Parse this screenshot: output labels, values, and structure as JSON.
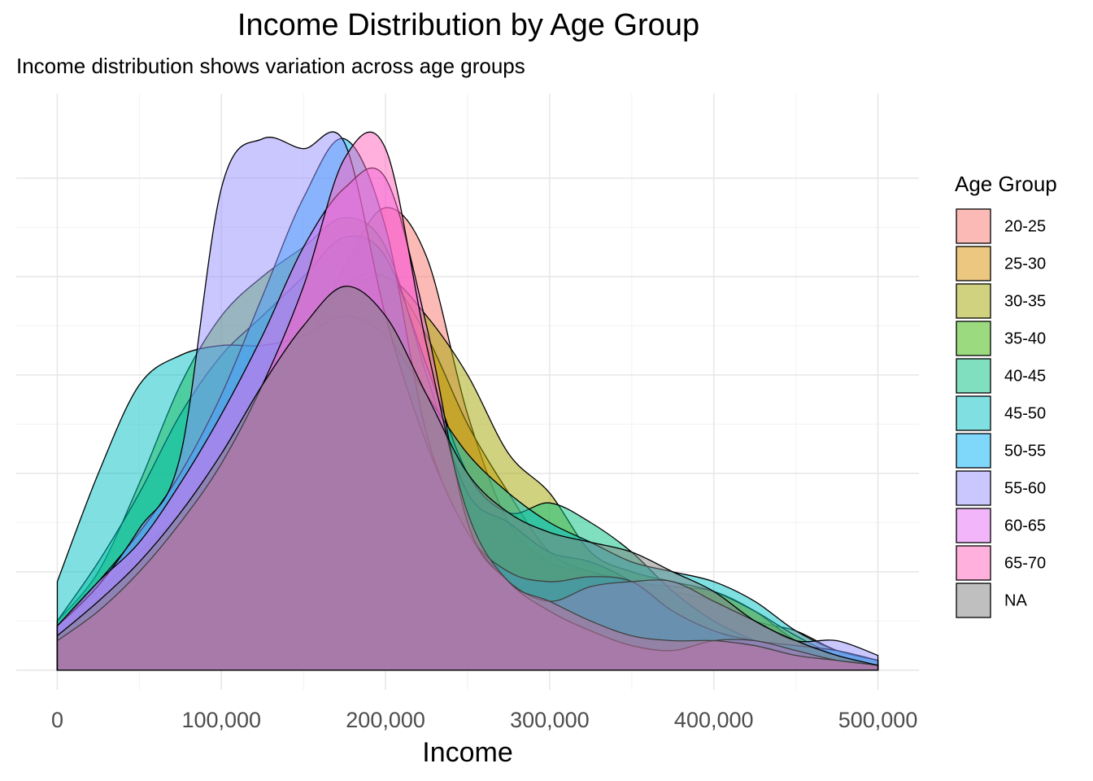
{
  "chart_data": {
    "type": "density",
    "title": "Income Distribution by Age Group",
    "subtitle": "Income distribution shows variation across age groups",
    "x_label": "Income",
    "legend_title": "Age Group",
    "legend_position": "right",
    "grid": true,
    "xlim": [
      -25000,
      525000
    ],
    "xticks": [
      0,
      {
        "value": 100000,
        "label": "100,000"
      },
      {
        "value": 200000,
        "label": "200,000"
      },
      {
        "value": 300000,
        "label": "300,000"
      },
      {
        "value": 400000,
        "label": "400,000"
      },
      {
        "value": 500000,
        "label": "500,000"
      }
    ],
    "ylim": [
      -2e-07,
      5.86e-06
    ],
    "yticks": [
      0,
      1e-06,
      2e-06,
      3e-06,
      4e-06,
      5e-06
    ],
    "x": [
      0,
      25000,
      50000,
      75000,
      100000,
      125000,
      150000,
      175000,
      200000,
      225000,
      250000,
      275000,
      300000,
      325000,
      350000,
      375000,
      400000,
      425000,
      450000,
      475000,
      500000
    ],
    "series": [
      {
        "name": "20-25",
        "color": "#F8766D",
        "values": [
          4e-07,
          6e-07,
          9e-07,
          1.3e-06,
          1.8e-06,
          2.4e-06,
          3.2e-06,
          4.1e-06,
          4.7e-06,
          4.2e-06,
          2.6e-06,
          1.5e-06,
          1.1e-06,
          1e-06,
          9e-07,
          8e-07,
          7e-07,
          5e-07,
          4e-07,
          2e-07,
          1e-07
        ]
      },
      {
        "name": "25-30",
        "color": "#D89000",
        "values": [
          3.5e-07,
          7e-07,
          1.1e-06,
          1.5e-06,
          2e-06,
          2.6e-06,
          3.3e-06,
          3.9e-06,
          4e-06,
          3.4e-06,
          2.5e-06,
          1.8e-06,
          1.2e-06,
          1e-06,
          9e-07,
          8.5e-07,
          8e-07,
          6e-07,
          3e-07,
          1.5e-07,
          5e-08
        ]
      },
      {
        "name": "30-35",
        "color": "#A3A500",
        "values": [
          4.5e-07,
          8e-07,
          1.2e-06,
          1.6e-06,
          2.1e-06,
          2.6e-06,
          3.2e-06,
          3.8e-06,
          4e-06,
          3.6e-06,
          3e-06,
          2.2e-06,
          1.8e-06,
          1.2e-06,
          1e-06,
          9e-07,
          8e-07,
          6e-07,
          3.5e-07,
          1.5e-07,
          5e-08
        ]
      },
      {
        "name": "35-40",
        "color": "#39B600",
        "values": [
          5e-07,
          1e-06,
          1.9e-06,
          2.9e-06,
          3.6e-06,
          4e-06,
          4.3e-06,
          4.6e-06,
          4.3e-06,
          3e-06,
          1.8e-06,
          1.5e-06,
          1.2e-06,
          1.1e-06,
          9e-07,
          6e-07,
          4e-07,
          2.5e-07,
          1.5e-07,
          1e-07,
          5e-08
        ]
      },
      {
        "name": "40-45",
        "color": "#00BF7D",
        "values": [
          5e-07,
          1.1e-06,
          1.8e-06,
          2.6e-06,
          3.2e-06,
          3.6e-06,
          4e-06,
          4.4e-06,
          4.2e-06,
          3.1e-06,
          2e-06,
          1.6e-06,
          1.7e-06,
          1.5e-06,
          1.2e-06,
          8e-07,
          5e-07,
          3e-07,
          1.5e-07,
          1e-07,
          5e-08
        ]
      },
      {
        "name": "45-50",
        "color": "#00BFC4",
        "values": [
          9e-07,
          2e-06,
          2.9e-06,
          3.2e-06,
          3.3e-06,
          3.3e-06,
          3.4e-06,
          3.6e-06,
          3.4e-06,
          2.8e-06,
          2.2e-06,
          1.8e-06,
          1.5e-06,
          1.3e-06,
          1.1e-06,
          1e-06,
          9e-07,
          7e-07,
          4e-07,
          2e-07,
          1e-07
        ]
      },
      {
        "name": "50-55",
        "color": "#00B0F6",
        "values": [
          4.5e-07,
          9e-07,
          1.4e-06,
          2e-06,
          2.8e-06,
          3.8e-06,
          4.8e-06,
          5.4e-06,
          4.5e-06,
          2.4e-06,
          1.4e-06,
          1e-06,
          9e-07,
          9.5e-07,
          9e-07,
          6e-07,
          4e-07,
          3e-07,
          2.5e-07,
          2e-07,
          1e-07
        ]
      },
      {
        "name": "55-60",
        "color": "#9590FF",
        "values": [
          4.5e-07,
          8.6e-07,
          1.44e-06,
          2.18e-06,
          4.9e-06,
          5.4e-06,
          5.3e-06,
          5.36e-06,
          3.6e-06,
          2.3e-06,
          1.4e-06,
          9e-07,
          7e-07,
          8.5e-07,
          9e-07,
          9e-07,
          7e-07,
          5e-07,
          3e-07,
          3e-07,
          1.5e-07
        ]
      },
      {
        "name": "60-65",
        "color": "#E76BF3",
        "values": [
          4.5e-07,
          9e-07,
          1.3e-06,
          1.9e-06,
          2.6e-06,
          3.4e-06,
          4.3e-06,
          4.9e-06,
          5e-06,
          3.5e-06,
          1.5e-06,
          9e-07,
          6e-07,
          4e-07,
          2.5e-07,
          2e-07,
          3e-07,
          3e-07,
          2e-07,
          1e-07,
          5e-08
        ]
      },
      {
        "name": "65-70",
        "color": "#FF62BC",
        "values": [
          3e-07,
          6e-07,
          1e-06,
          1.5e-06,
          2.1e-06,
          2.9e-06,
          3.9e-06,
          5.2e-06,
          5.3e-06,
          3.3e-06,
          1.6e-06,
          9e-07,
          7e-07,
          5e-07,
          3.5e-07,
          3e-07,
          3e-07,
          2.5e-07,
          1.5e-07,
          1e-07,
          5e-08
        ]
      },
      {
        "name": "NA",
        "color": "#7F7F7F",
        "values": [
          3.5e-07,
          7e-07,
          1.1e-06,
          1.6e-06,
          2.2e-06,
          2.9e-06,
          3.5e-06,
          3.9e-06,
          3.6e-06,
          2.8e-06,
          2e-06,
          1.6e-06,
          1.4e-06,
          1.3e-06,
          1.2e-06,
          1e-06,
          8e-07,
          5e-07,
          3e-07,
          1.5e-07,
          5e-08
        ]
      }
    ]
  }
}
